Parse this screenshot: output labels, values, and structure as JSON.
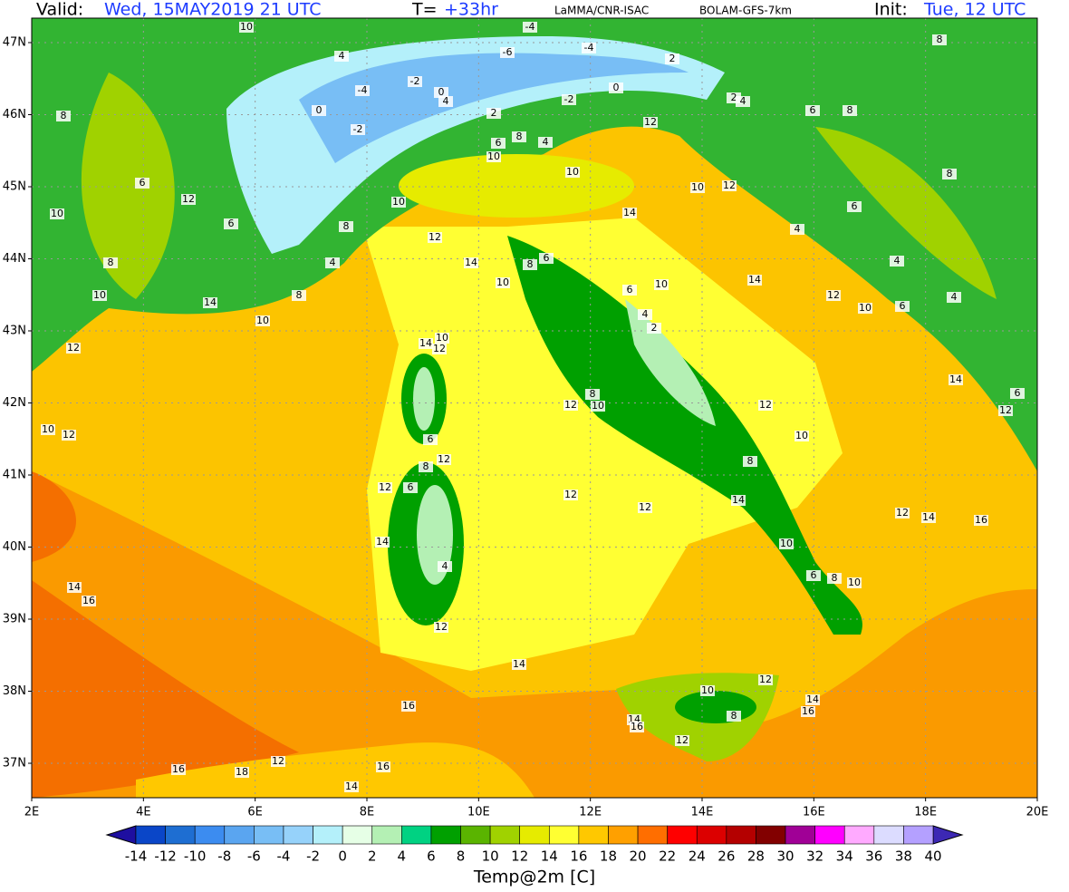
{
  "header": {
    "valid_label": "Valid:",
    "valid_value": "Wed, 15MAY2019  21 UTC",
    "t_label": "T=",
    "t_value": "+33hr",
    "source": "LaMMA/CNR-ISAC",
    "model": "BOLAM-GFS-7km",
    "init_label": "Init:",
    "init_value": "Tue, 12 UTC"
  },
  "map": {
    "lat_labels": [
      "47N",
      "46N",
      "45N",
      "44N",
      "43N",
      "42N",
      "41N",
      "40N",
      "39N",
      "38N",
      "37N"
    ],
    "lon_labels": [
      "2E",
      "4E",
      "6E",
      "8E",
      "10E",
      "12E",
      "14E",
      "16E",
      "18E",
      "20E"
    ],
    "contour_labels": [
      10,
      4,
      -4,
      -2,
      0,
      -2,
      0,
      4,
      2,
      -2,
      0,
      2,
      -4,
      -4,
      -6,
      2,
      4,
      12,
      6,
      8,
      4,
      10,
      10,
      10,
      8,
      6,
      12,
      6,
      8,
      10,
      8,
      10,
      14,
      8,
      4,
      10,
      12,
      10,
      12,
      12,
      14,
      10,
      14,
      10,
      12,
      4,
      6,
      8,
      8,
      6,
      8,
      4,
      4,
      10,
      6,
      12,
      14,
      10,
      6,
      4,
      2,
      6,
      8,
      14,
      12,
      10,
      12,
      10,
      8,
      12,
      10,
      8,
      6,
      8,
      12,
      12,
      6,
      14,
      4,
      12,
      12,
      12,
      14,
      10,
      6,
      8,
      10,
      12,
      14,
      16,
      12,
      6,
      14,
      14,
      16,
      10,
      8,
      12,
      14,
      16,
      12,
      14,
      16,
      12,
      16,
      18,
      16,
      14,
      14,
      16
    ]
  },
  "colorbar": {
    "title": "Temp@2m [C]",
    "labels": [
      -14,
      -12,
      -10,
      -8,
      -6,
      -4,
      -2,
      0,
      2,
      4,
      6,
      8,
      10,
      12,
      14,
      16,
      18,
      20,
      22,
      24,
      26,
      28,
      30,
      32,
      34,
      36,
      38,
      40
    ],
    "colors": [
      "#1e0fa0",
      "#0a46c8",
      "#1e6ed2",
      "#3c8cf0",
      "#5aa5f0",
      "#78bef5",
      "#96d2fa",
      "#b4f0fa",
      "#e6ffe6",
      "#b4f0b4",
      "#00d282",
      "#00a000",
      "#5ab400",
      "#a0d200",
      "#e6eb00",
      "#ffff32",
      "#ffc800",
      "#ffa000",
      "#ff6e00",
      "#ff0000",
      "#dc0000",
      "#b40000",
      "#820000",
      "#a00096",
      "#ff00ff",
      "#ffaaff",
      "#dcdcff",
      "#b4a0ff",
      "#6450d2",
      "#3c28b4"
    ]
  }
}
